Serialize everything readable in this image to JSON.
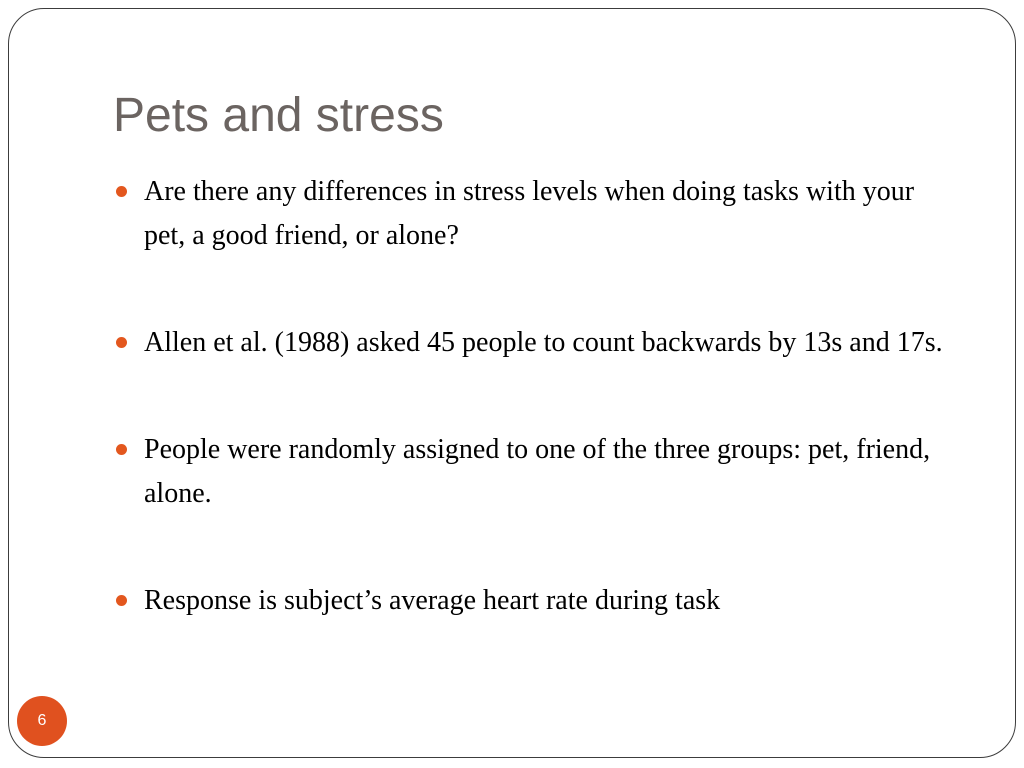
{
  "slide": {
    "title": "Pets and stress",
    "bullets": [
      {
        "text": "Are there any differences in stress levels when doing tasks with your pet, a good friend, or alone?"
      },
      {
        "text": "Allen et al. (1988) asked 45 people to count backwards by 13s and 17s."
      },
      {
        "text": "People were randomly assigned to one of the three groups: pet, friend, alone."
      },
      {
        "text": "Response is subject’s average heart rate during task"
      }
    ],
    "page_number": "6"
  },
  "colors": {
    "title": "#6b6461",
    "accent": "#e3571e",
    "frame": "#3c3c3c"
  }
}
